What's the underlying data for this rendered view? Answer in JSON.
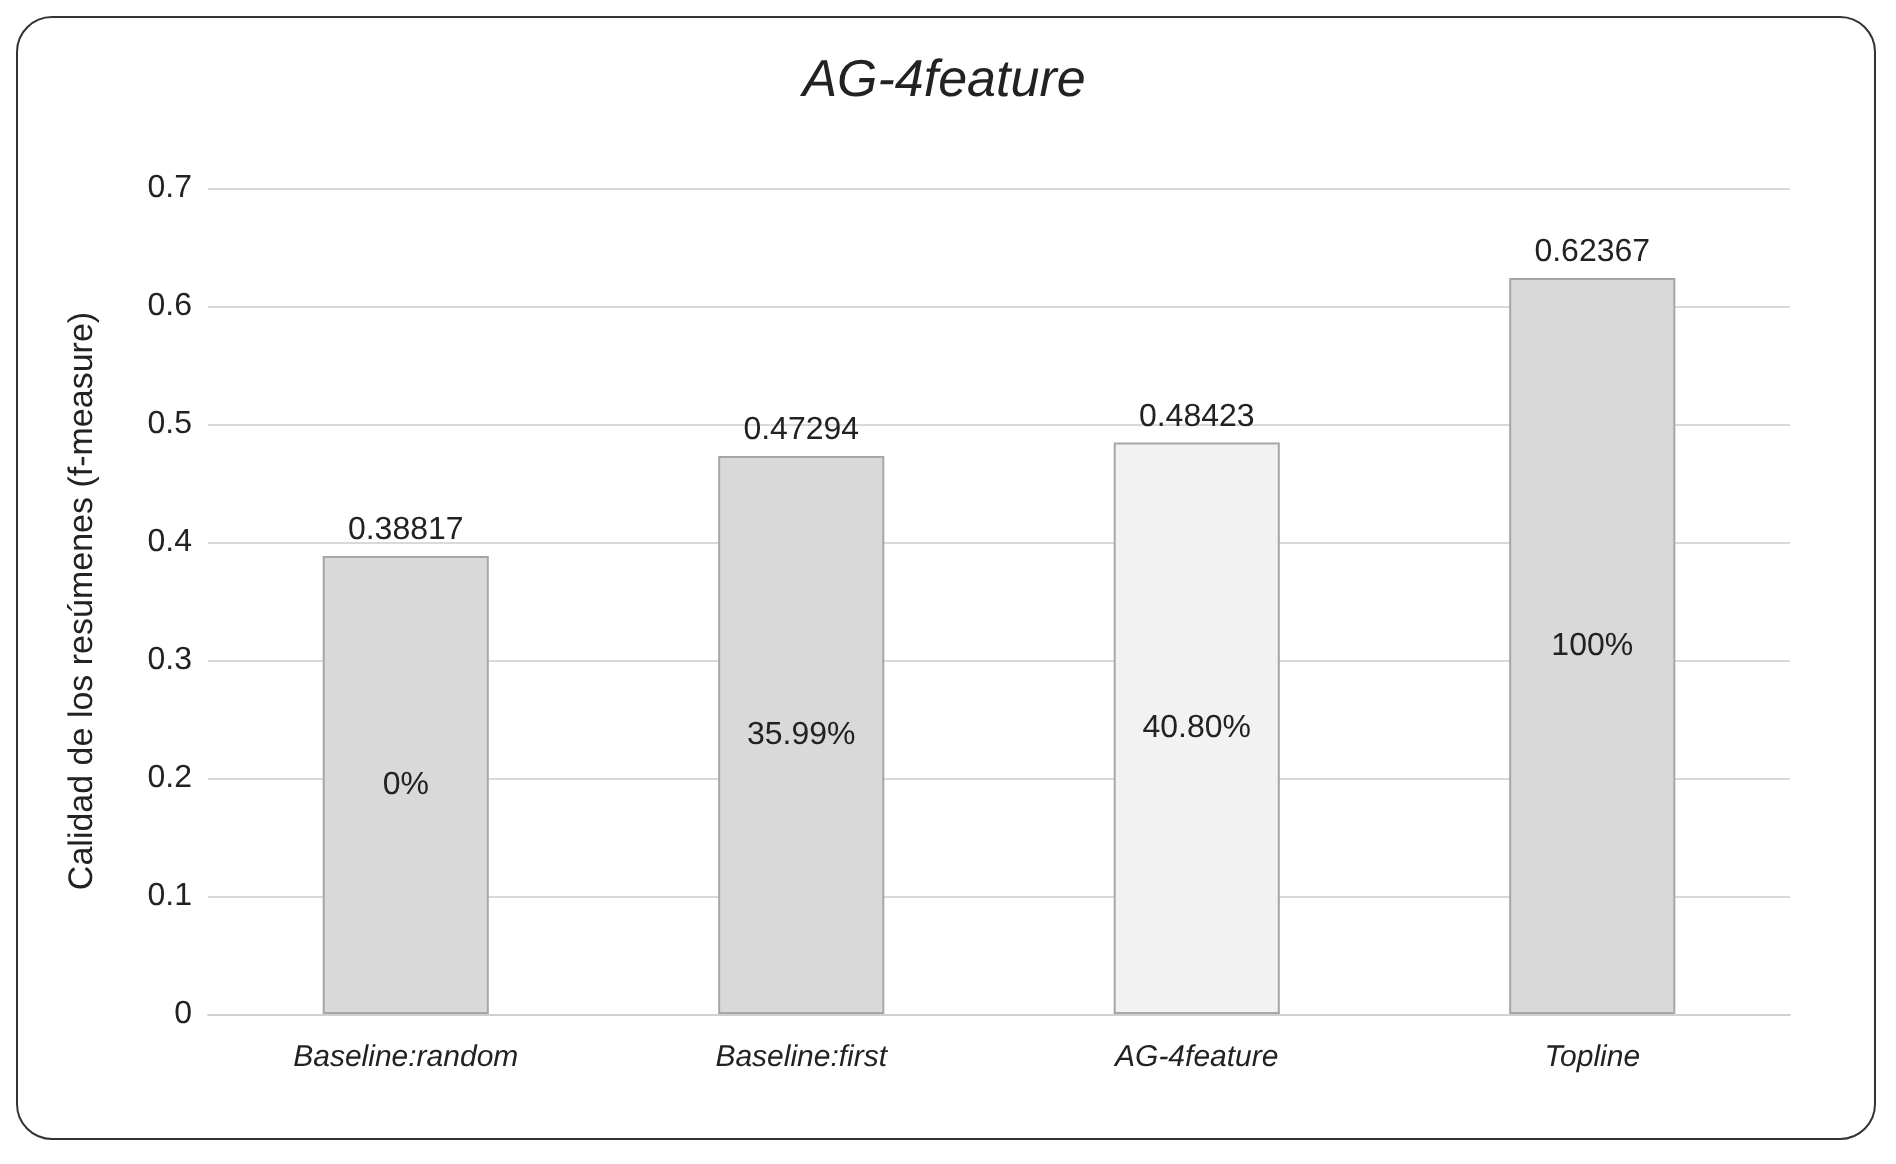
{
  "chart_data": {
    "type": "bar",
    "title": "AG-4feature",
    "ylabel": "Calidad de los resúmenes (f-measure)",
    "categories": [
      "Baseline:random",
      "Baseline:first",
      "AG-4feature",
      "Topline"
    ],
    "values": [
      0.38817,
      0.47294,
      0.48423,
      0.62367
    ],
    "colors": [
      "#d9d9d9",
      "#d9d9d9",
      "#f2f2f2",
      "#d9d9d9"
    ],
    "data_labels": true,
    "annotations": [
      "0%",
      "35.99%",
      "40.80%",
      "100%"
    ],
    "ylim": [
      0,
      0.7
    ],
    "yticks": [
      0,
      0.1,
      0.2,
      0.3,
      0.4,
      0.5,
      0.6,
      0.7
    ],
    "grid": "y"
  }
}
